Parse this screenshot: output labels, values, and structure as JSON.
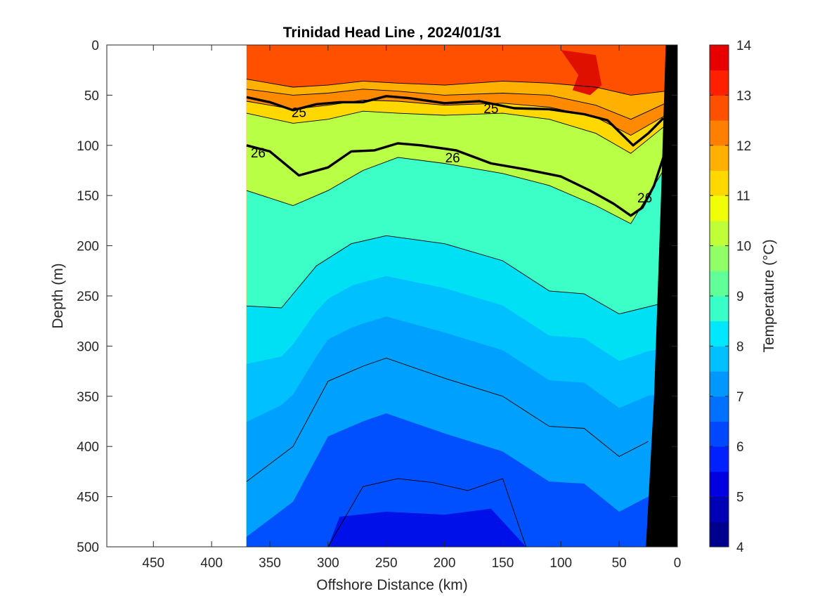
{
  "chart_data": {
    "type": "heatmap",
    "title": "Trinidad Head Line , 2024/01/31",
    "xlabel": "Offshore Distance (km)",
    "ylabel": "Depth (m)",
    "colorbar_label": "Temperature (°C)",
    "xlim": [
      490,
      0
    ],
    "ylim": [
      0,
      500
    ],
    "xticks": [
      450,
      400,
      350,
      300,
      250,
      200,
      150,
      100,
      50,
      0
    ],
    "yticks": [
      0,
      50,
      100,
      150,
      200,
      250,
      300,
      350,
      400,
      450,
      500
    ],
    "clim": [
      4,
      14
    ],
    "cticks": [
      4,
      5,
      6,
      7,
      8,
      9,
      10,
      11,
      12,
      13,
      14
    ],
    "data_extent_km": [
      370,
      10
    ],
    "isotherms": [
      {
        "temperature": 12.5,
        "x": [
          370,
          330,
          300,
          270,
          240,
          200,
          150,
          110,
          70,
          40,
          10
        ],
        "depth": [
          34,
          42,
          40,
          36,
          38,
          40,
          36,
          38,
          42,
          50,
          46
        ]
      },
      {
        "temperature": 12,
        "x": [
          370,
          330,
          300,
          270,
          240,
          200,
          150,
          110,
          70,
          40,
          10
        ],
        "depth": [
          44,
          50,
          48,
          44,
          46,
          50,
          48,
          50,
          60,
          74,
          58
        ]
      },
      {
        "temperature": 11,
        "x": [
          370,
          330,
          300,
          270,
          240,
          200,
          150,
          110,
          70,
          40,
          10
        ],
        "depth": [
          56,
          64,
          60,
          55,
          56,
          60,
          58,
          62,
          72,
          90,
          70
        ]
      },
      {
        "temperature": 10,
        "x": [
          370,
          330,
          300,
          270,
          240,
          200,
          150,
          110,
          70,
          40,
          10
        ],
        "depth": [
          68,
          78,
          74,
          66,
          68,
          70,
          68,
          74,
          88,
          108,
          80
        ]
      },
      {
        "temperature": 9,
        "x": [
          370,
          330,
          300,
          270,
          240,
          200,
          150,
          110,
          70,
          40,
          12
        ],
        "depth": [
          145,
          160,
          145,
          125,
          112,
          118,
          128,
          140,
          160,
          178,
          125
        ]
      },
      {
        "temperature": 8,
        "x": [
          370,
          340,
          310,
          280,
          250,
          200,
          150,
          110,
          80,
          50,
          15
        ],
        "depth": [
          260,
          262,
          220,
          198,
          190,
          198,
          215,
          245,
          248,
          268,
          258
        ]
      },
      {
        "temperature": 7,
        "x": [
          370,
          330,
          300,
          270,
          250,
          200,
          150,
          110,
          80,
          50,
          25
        ],
        "depth": [
          435,
          400,
          335,
          320,
          312,
          332,
          350,
          380,
          382,
          410,
          395
        ]
      },
      {
        "temperature": 6,
        "x": [
          300,
          270,
          240,
          210,
          180,
          150,
          130
        ],
        "depth": [
          500,
          440,
          432,
          436,
          444,
          432,
          500
        ]
      }
    ],
    "labeled_isopycnals": [
      {
        "sigma": 25,
        "x": [
          370,
          350,
          330,
          310,
          290,
          270,
          250,
          230,
          200,
          170,
          140,
          110,
          80,
          60,
          45,
          38,
          25,
          12
        ],
        "depth": [
          52,
          57,
          65,
          59,
          57,
          57,
          51,
          53,
          58,
          56,
          63,
          64,
          69,
          75,
          92,
          100,
          88,
          73
        ]
      },
      {
        "sigma": 26,
        "x": [
          370,
          350,
          325,
          300,
          280,
          260,
          240,
          220,
          190,
          160,
          130,
          100,
          75,
          55,
          40,
          30,
          20,
          12
        ],
        "depth": [
          100,
          106,
          130,
          122,
          106,
          105,
          98,
          100,
          105,
          118,
          124,
          131,
          145,
          158,
          170,
          162,
          140,
          112
        ]
      }
    ],
    "contour_labels": [
      {
        "text": "25",
        "x": 325,
        "depth": 67
      },
      {
        "text": "25",
        "x": 160,
        "depth": 63
      },
      {
        "text": "26",
        "x": 360,
        "depth": 107
      },
      {
        "text": "26",
        "x": 193,
        "depth": 112
      },
      {
        "text": "26",
        "x": 28,
        "depth": 152
      }
    ],
    "bathymetry": {
      "x": [
        0,
        10,
        14,
        20,
        27,
        27,
        0
      ],
      "depth": [
        0,
        0,
        150,
        350,
        500,
        500,
        500
      ]
    },
    "colors": {
      "4": "#00008f",
      "5": "#0000c8",
      "6": "#0020ff",
      "7": "#0068ff",
      "8": "#00b8ff",
      "9": "#2cf2da",
      "10": "#7cff84",
      "11": "#d0ff2e",
      "12": "#ffb000",
      "13": "#ff5000",
      "14": "#cc0000"
    }
  }
}
